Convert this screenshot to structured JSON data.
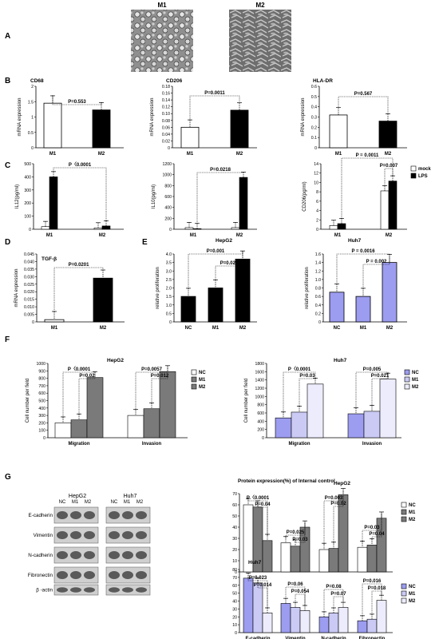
{
  "colors": {
    "nc": "#9c9cf0",
    "m1": "#cacaf5",
    "m2": "#ececfc",
    "dark": "#000000",
    "gray": "#7a7a7a",
    "white": "#ffffff"
  },
  "panel_letters": {
    "A": "A",
    "B": "B",
    "C": "C",
    "D": "D",
    "E": "E",
    "F": "F",
    "G": "G"
  },
  "micrographs": {
    "m1_label": "M1",
    "m2_label": "M2"
  },
  "chart_data": [
    {
      "id": "cd68",
      "panel": "B",
      "type": "bar",
      "title": "CD68",
      "ylabel": "mRNA expression",
      "categories": [
        "M1",
        "M2"
      ],
      "values": [
        1.45,
        1.23
      ],
      "ylim": [
        0,
        2
      ],
      "ticks": [
        "0",
        "0.5",
        "1",
        "1.5",
        "2"
      ],
      "annotations": [
        {
          "text": "P=0.553"
        }
      ]
    },
    {
      "id": "cd206",
      "panel": "B",
      "type": "bar",
      "title": "CD206",
      "ylabel": "mRNA expression",
      "categories": [
        "M1",
        "M2"
      ],
      "values": [
        0.06,
        0.11
      ],
      "ylim": [
        0,
        0.18
      ],
      "ticks": [
        "0",
        "0.02",
        "0.04",
        "0.06",
        "0.08",
        "0.10",
        "0.12",
        "0.14",
        "0.16",
        "0.18"
      ],
      "annotations": [
        {
          "text": "P=0.0011"
        }
      ]
    },
    {
      "id": "hladr",
      "panel": "B",
      "type": "bar",
      "title": "HLA-DR",
      "ylabel": "mRNA expression",
      "categories": [
        "M1",
        "M2"
      ],
      "values": [
        0.32,
        0.26
      ],
      "ylim": [
        0,
        0.6
      ],
      "ticks": [
        "0",
        "0.1",
        "0.2",
        "0.3",
        "0.4",
        "0.5",
        "0.6"
      ],
      "annotations": [
        {
          "text": "P=0.567"
        }
      ]
    },
    {
      "id": "il12",
      "panel": "C",
      "type": "bar",
      "title": "",
      "ylabel": "IL12(pg/ml)",
      "categories": [
        "M1",
        "M2"
      ],
      "series": [
        {
          "name": "mock",
          "values": [
            20,
            10
          ]
        },
        {
          "name": "LPS",
          "values": [
            400,
            25
          ]
        }
      ],
      "ylim": [
        0,
        500
      ],
      "ticks": [
        "0",
        "100",
        "200",
        "300",
        "400",
        "500"
      ],
      "annotations": [
        {
          "text": "P〈0.0001"
        }
      ]
    },
    {
      "id": "il10",
      "panel": "C",
      "type": "bar",
      "title": "",
      "ylabel": "IL10(pg/ml)",
      "categories": [
        "M1",
        "M2"
      ],
      "series": [
        {
          "name": "mock",
          "values": [
            30,
            30
          ]
        },
        {
          "name": "LPS",
          "values": [
            10,
            950
          ]
        }
      ],
      "ylim": [
        0,
        1200
      ],
      "ticks": [
        "0",
        "200",
        "400",
        "600",
        "800",
        "1000",
        "1200"
      ],
      "annotations": [
        {
          "text": "P=0.0218"
        }
      ]
    },
    {
      "id": "cd206c",
      "panel": "C",
      "type": "bar",
      "title": "",
      "ylabel": "CD206(pg/ml)",
      "categories": [
        "M1",
        "M2"
      ],
      "series": [
        {
          "name": "mock",
          "values": [
            0.8,
            8.2
          ]
        },
        {
          "name": "LPS",
          "values": [
            1.2,
            10.3
          ]
        }
      ],
      "ylim": [
        0,
        14
      ],
      "ticks": [
        "0",
        "2",
        "4",
        "6",
        "8",
        "10",
        "12",
        "14"
      ],
      "legend": [
        "mock",
        "LPS"
      ],
      "annotations": [
        {
          "text": "P = 0.0011"
        },
        {
          "text": "P=0.007"
        }
      ]
    },
    {
      "id": "tgfb",
      "panel": "D",
      "type": "bar",
      "title": "TGF-β",
      "ylabel": "mRNA expression",
      "categories": [
        "M1",
        "M2"
      ],
      "values": [
        0.0015,
        0.029
      ],
      "ylim": [
        0,
        0.045
      ],
      "ticks": [
        "0",
        "0.005",
        "0.010",
        "0.015",
        "0.020",
        "0.025",
        "0.030",
        "0.035",
        "0.040",
        "0.045"
      ],
      "annotations": [
        {
          "text": "P=0.0201"
        }
      ]
    },
    {
      "id": "prolif_hepg2",
      "panel": "E",
      "type": "bar",
      "title": "HepG2",
      "ylabel": "relative proliferation",
      "categories": [
        "NC",
        "M1",
        "M2"
      ],
      "values": [
        1.5,
        2.0,
        3.7
      ],
      "ylim": [
        0,
        4
      ],
      "ticks": [
        "0",
        "0.5",
        "1.0",
        "1.5",
        "2.0",
        "2.5",
        "3.0",
        "3.5",
        "4.0"
      ],
      "annotations": [
        {
          "text": "P=0.001"
        },
        {
          "text": "P=0.021"
        }
      ]
    },
    {
      "id": "prolif_huh7",
      "panel": "E",
      "type": "bar",
      "title": "Huh7",
      "ylabel": "relative proliferation",
      "categories": [
        "NC",
        "M1",
        "M2"
      ],
      "values": [
        0.7,
        0.6,
        1.4
      ],
      "ylim": [
        0,
        1.6
      ],
      "ticks": [
        "0",
        "0.2",
        "0.4",
        "0.6",
        "0.8",
        "1.0",
        "1.2",
        "1.4",
        "1.6"
      ],
      "annotations": [
        {
          "text": "P = 0.0016"
        },
        {
          "text": "P = 0.002"
        }
      ]
    },
    {
      "id": "migr_hepg2",
      "panel": "F",
      "type": "bar",
      "title": "HepG2",
      "ylabel": "Cell number per field",
      "categories": [
        "Migration",
        "Invasion"
      ],
      "series": [
        {
          "name": "NC",
          "values": [
            200,
            300
          ]
        },
        {
          "name": "M1",
          "values": [
            240,
            390
          ]
        },
        {
          "name": "M2",
          "values": [
            810,
            890
          ]
        }
      ],
      "ylim": [
        0,
        1000
      ],
      "ticks": [
        "0",
        "100",
        "200",
        "300",
        "400",
        "500",
        "600",
        "700",
        "800",
        "900",
        "1000"
      ],
      "legend": [
        "NC",
        "M1",
        "M2"
      ],
      "annotations": [
        {
          "text": "P〈0.0001"
        },
        {
          "text": "P=0.02"
        },
        {
          "text": "P=0.0057"
        },
        {
          "text": "P=0.012"
        }
      ]
    },
    {
      "id": "migr_huh7",
      "panel": "F",
      "type": "bar",
      "title": "Huh7",
      "ylabel": "Cell number per field",
      "categories": [
        "Migration",
        "Invasion"
      ],
      "series": [
        {
          "name": "NC",
          "values": [
            480,
            580
          ]
        },
        {
          "name": "M1",
          "values": [
            620,
            640
          ]
        },
        {
          "name": "M2",
          "values": [
            1300,
            1420
          ]
        }
      ],
      "ylim": [
        0,
        1800
      ],
      "ticks": [
        "0",
        "200",
        "400",
        "600",
        "800",
        "1000",
        "1200",
        "1400",
        "1600",
        "1800"
      ],
      "legend": [
        "NC",
        "M1",
        "M2"
      ],
      "annotations": [
        {
          "text": "P〈0.0001"
        },
        {
          "text": "P=0.03"
        },
        {
          "text": "P=0.005"
        },
        {
          "text": "P=0.021"
        }
      ]
    },
    {
      "id": "prot_hepg2",
      "panel": "G",
      "type": "bar",
      "title": "HepG2",
      "ylabel": "Protein expression(%) of Internal  control",
      "categories": [
        "E-cadherin",
        "Vimentin",
        "N-cadherin",
        "Fibronectin"
      ],
      "series": [
        {
          "name": "NC",
          "values": [
            60,
            26,
            20,
            22
          ]
        },
        {
          "name": "M1",
          "values": [
            58,
            23,
            21,
            24
          ]
        },
        {
          "name": "M2",
          "values": [
            28,
            40,
            69,
            48
          ]
        }
      ],
      "ylim": [
        0,
        70
      ],
      "ticks": [
        "0",
        "10",
        "20",
        "30",
        "40",
        "50",
        "60",
        "70"
      ],
      "legend": [
        "NC",
        "M1",
        "M2"
      ],
      "annotations": [
        {
          "text": "P〈0.0001"
        },
        {
          "text": "P=0.04"
        },
        {
          "text": "P=0.025"
        },
        {
          "text": "P=0.03"
        },
        {
          "text": "P=0.003"
        },
        {
          "text": "P=0.02"
        },
        {
          "text": "P=0.03"
        },
        {
          "text": "P=0.04"
        }
      ]
    },
    {
      "id": "prot_huh7",
      "panel": "G",
      "type": "bar",
      "title": "Huh7",
      "ylabel": "",
      "categories": [
        "E-cadherin",
        "Vimentin",
        "N-cadherin",
        "Fibronectin"
      ],
      "series": [
        {
          "name": "NC",
          "values": [
            69,
            37,
            20,
            15
          ]
        },
        {
          "name": "M1",
          "values": [
            63,
            32,
            25,
            17
          ]
        },
        {
          "name": "M2",
          "values": [
            25,
            28,
            32,
            41
          ]
        }
      ],
      "ylim": [
        0,
        80
      ],
      "ticks": [
        "0",
        "10",
        "20",
        "30",
        "40",
        "50",
        "60",
        "70",
        "80"
      ],
      "legend": [
        "NC",
        "M1",
        "M2"
      ],
      "annotations": [
        {
          "text": "P=0.023"
        },
        {
          "text": "P=0.014"
        },
        {
          "text": "P=0.06"
        },
        {
          "text": "P=0.054"
        },
        {
          "text": "P=0.08"
        },
        {
          "text": "P=0.07"
        },
        {
          "text": "P=0.016"
        },
        {
          "text": "P=0.018"
        }
      ]
    }
  ],
  "western": {
    "hepg2_label": "HepG2",
    "huh7_label": "Huh7",
    "lanes": [
      "NC",
      "M1",
      "M2"
    ],
    "rows": [
      "E-cadherin",
      "Vimentin",
      "N-cadherin",
      "Fibronectin",
      "β -actin"
    ]
  }
}
